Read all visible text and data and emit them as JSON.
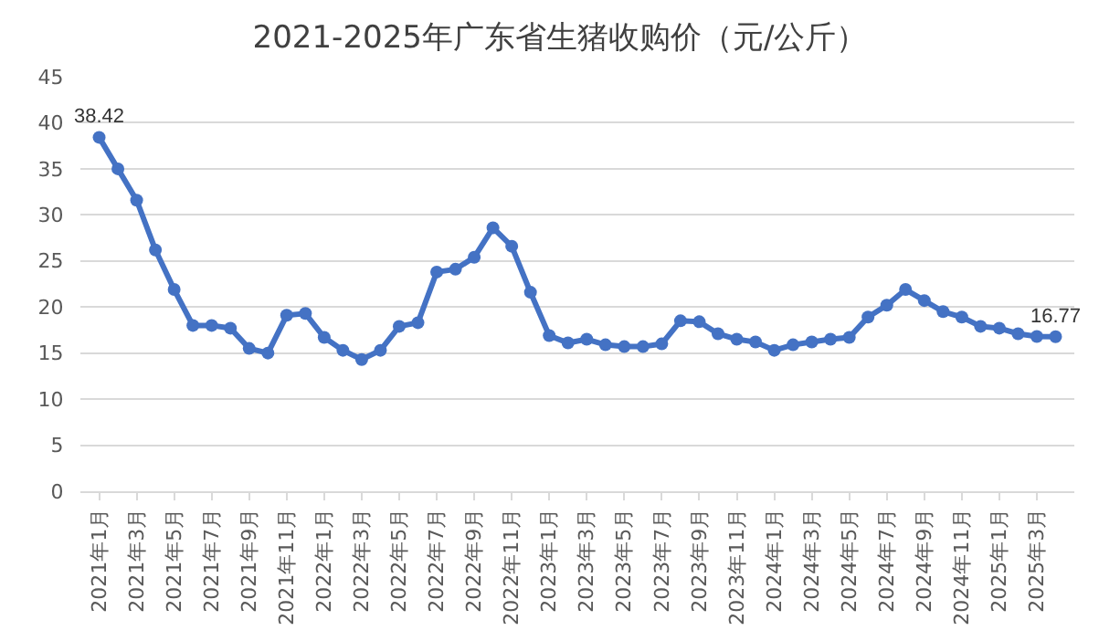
{
  "chart_data": {
    "type": "line",
    "title": "2021-2025年广东省生猪收购价（元/公斤）",
    "categories": [
      "2021年1月",
      null,
      "2021年3月",
      null,
      "2021年5月",
      null,
      "2021年7月",
      null,
      "2021年9月",
      null,
      "2021年11月",
      null,
      "2022年1月",
      null,
      "2022年3月",
      null,
      "2022年5月",
      null,
      "2022年7月",
      null,
      "2022年9月",
      null,
      "2022年11月",
      null,
      "2023年1月",
      null,
      "2023年3月",
      null,
      "2023年5月",
      null,
      "2023年7月",
      null,
      "2023年9月",
      null,
      "2023年11月",
      null,
      "2024年1月",
      null,
      "2024年3月",
      null,
      "2024年5月",
      null,
      "2024年7月",
      null,
      "2024年9月",
      null,
      "2024年11月",
      null,
      "2025年1月",
      null,
      "2025年3月",
      null
    ],
    "series": [
      {
        "color": "#4472c4",
        "values": [
          38.42,
          35.0,
          31.6,
          26.2,
          21.9,
          18.0,
          18.0,
          17.7,
          15.5,
          15.0,
          19.1,
          19.3,
          16.7,
          15.3,
          14.3,
          15.3,
          17.9,
          18.3,
          23.8,
          24.1,
          25.4,
          28.6,
          26.6,
          21.6,
          16.9,
          16.1,
          16.5,
          15.9,
          15.7,
          15.7,
          16.0,
          18.5,
          18.4,
          17.1,
          16.5,
          16.2,
          15.3,
          15.9,
          16.2,
          16.5,
          16.7,
          18.9,
          20.2,
          21.9,
          20.7,
          19.5,
          18.9,
          17.9,
          17.7,
          17.1,
          16.8,
          16.77
        ],
        "value_labels": [
          "38.42",
          null,
          null,
          null,
          null,
          null,
          null,
          null,
          null,
          null,
          null,
          null,
          null,
          null,
          null,
          null,
          null,
          null,
          null,
          null,
          null,
          null,
          null,
          null,
          null,
          null,
          null,
          null,
          null,
          null,
          null,
          null,
          null,
          null,
          null,
          null,
          null,
          null,
          null,
          null,
          null,
          null,
          null,
          null,
          null,
          null,
          null,
          null,
          null,
          null,
          null,
          "16.77"
        ]
      }
    ],
    "ylim": [
      0,
      45
    ],
    "yticks": [
      0,
      5,
      10,
      15,
      20,
      25,
      30,
      35,
      40,
      45
    ],
    "grid": "y",
    "marker": "circle",
    "line_style": "solid"
  }
}
